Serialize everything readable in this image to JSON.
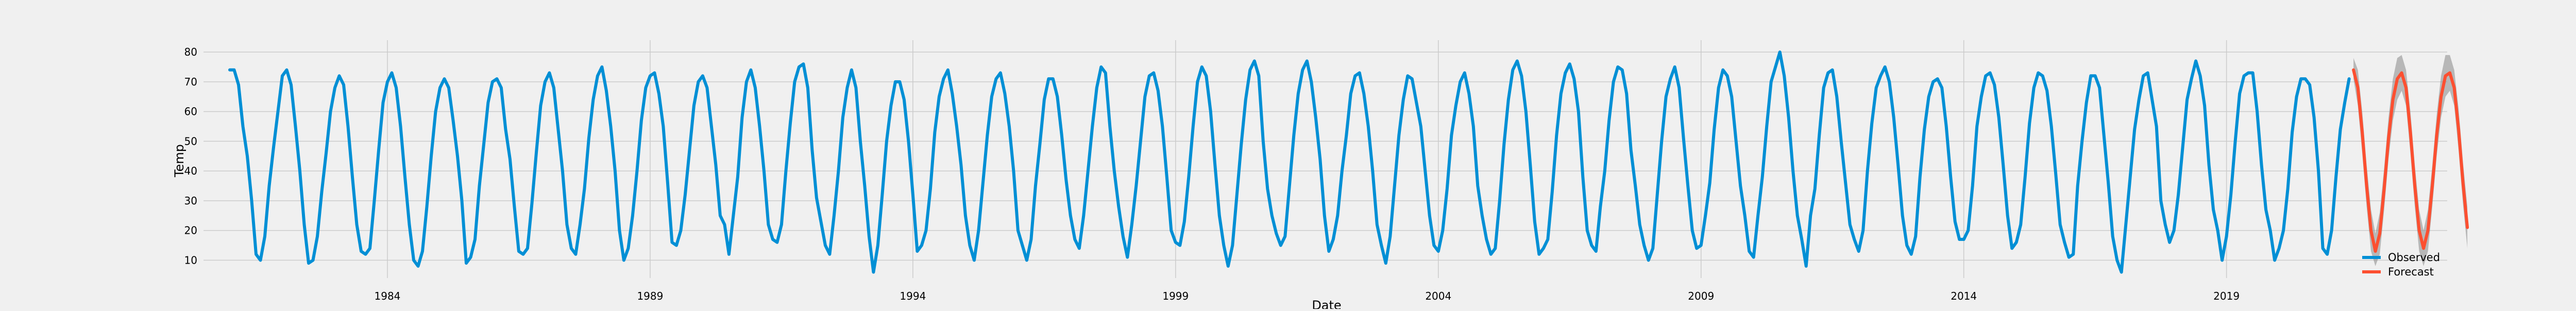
{
  "chart_data": {
    "type": "line",
    "title": "",
    "xlabel": "Date",
    "ylabel": "Temp",
    "xlim": [
      1980.5,
      2023.2
    ],
    "ylim": [
      4,
      84
    ],
    "yticks": [
      10,
      20,
      30,
      40,
      50,
      60,
      70,
      80
    ],
    "xticks": [
      "1984",
      "1989",
      "1994",
      "1999",
      "2004",
      "2009",
      "2014",
      "2019"
    ],
    "grid": true,
    "legend_position": "bottom-right",
    "colors": {
      "observed": "#008fd5",
      "forecast": "#fc4f30",
      "band": "#888888"
    },
    "series": [
      {
        "name": "Observed",
        "sampling": "monthly",
        "start_year": 1981,
        "start_month": 1,
        "y": [
          74,
          74,
          69,
          55,
          45,
          30,
          12,
          10,
          18,
          35,
          48,
          60,
          72,
          74,
          69,
          55,
          40,
          22,
          9,
          10,
          18,
          33,
          46,
          60,
          68,
          72,
          69,
          55,
          38,
          22,
          13,
          12,
          14,
          30,
          47,
          63,
          70,
          73,
          68,
          55,
          38,
          22,
          10,
          8,
          13,
          28,
          45,
          60,
          68,
          71,
          68,
          57,
          45,
          30,
          9,
          11,
          17,
          35,
          49,
          63,
          70,
          71,
          68,
          54,
          44,
          28,
          13,
          12,
          14,
          29,
          46,
          62,
          70,
          73,
          68,
          54,
          40,
          22,
          14,
          12,
          22,
          34,
          51,
          64,
          72,
          75,
          67,
          55,
          40,
          20,
          10,
          14,
          25,
          40,
          57,
          68,
          72,
          73,
          66,
          55,
          36,
          16,
          15,
          20,
          32,
          47,
          62,
          70,
          72,
          68,
          55,
          42,
          25,
          22,
          12,
          25,
          38,
          58,
          70,
          74,
          68,
          55,
          40,
          22,
          17,
          16,
          22,
          40,
          56,
          70,
          75,
          76,
          68,
          47,
          31,
          23,
          15,
          12,
          25,
          40,
          58,
          68,
          74,
          68,
          50,
          35,
          18,
          6,
          15,
          32,
          50,
          62,
          70,
          70,
          64,
          50,
          32,
          13,
          15,
          20,
          34,
          53,
          65,
          71,
          74,
          66,
          55,
          42,
          25,
          15,
          10,
          20,
          36,
          52,
          65,
          71,
          73,
          66,
          55,
          40,
          20,
          15,
          10,
          17,
          35,
          49,
          64,
          71,
          71,
          65,
          52,
          37,
          25,
          17,
          14,
          25,
          40,
          55,
          68,
          75,
          73,
          55,
          40,
          28,
          18,
          11,
          22,
          35,
          50,
          65,
          72,
          73,
          67,
          55,
          38,
          20,
          16,
          15,
          23,
          38,
          55,
          70,
          75,
          72,
          60,
          42,
          25,
          15,
          8,
          15,
          32,
          49,
          64,
          74,
          77,
          72,
          50,
          34,
          25,
          19,
          15,
          18,
          35,
          52,
          66,
          74,
          77,
          70,
          58,
          44,
          25,
          13,
          17,
          25,
          40,
          52,
          66,
          72,
          73,
          66,
          55,
          40,
          22,
          15,
          9,
          18,
          35,
          52,
          64,
          72,
          71,
          63,
          55,
          40,
          25,
          15,
          13,
          20,
          34,
          52,
          62,
          70,
          73,
          66,
          55,
          35,
          25,
          17,
          12,
          14,
          30,
          49,
          64,
          74,
          77,
          72,
          60,
          42,
          23,
          12,
          14,
          17,
          33,
          52,
          66,
          73,
          76,
          71,
          60,
          38,
          20,
          15,
          13,
          28,
          40,
          57,
          70,
          75,
          74,
          66,
          47,
          35,
          22,
          15,
          10,
          14,
          32,
          50,
          65,
          71,
          75,
          68,
          51,
          35,
          20,
          14,
          15,
          25,
          36,
          54,
          68,
          74,
          72,
          65,
          50,
          35,
          25,
          13,
          11,
          25,
          38,
          55,
          70,
          75,
          80,
          72,
          58,
          40,
          25,
          17,
          8,
          25,
          34,
          52,
          68,
          73,
          74,
          65,
          50,
          36,
          22,
          17,
          13,
          20,
          40,
          56,
          68,
          72,
          75,
          70,
          58,
          42,
          25,
          15,
          12,
          18,
          38,
          54,
          65,
          70,
          71,
          68,
          55,
          38,
          23,
          17,
          17,
          20,
          35,
          55,
          65,
          72,
          73,
          69,
          58,
          42,
          25,
          14,
          16,
          22,
          38,
          56,
          68,
          73,
          72,
          67,
          55,
          39,
          22,
          16,
          11,
          12,
          35,
          50,
          63,
          72,
          72,
          68,
          52,
          36,
          18,
          10,
          6,
          22,
          38,
          54,
          64,
          72,
          73,
          64,
          55,
          30,
          22,
          16,
          20,
          32,
          48,
          64,
          71,
          77,
          72,
          62,
          42,
          27,
          20,
          10,
          18,
          32,
          50,
          66,
          72,
          73,
          73,
          60,
          42,
          27,
          20,
          10,
          14,
          20,
          34,
          53,
          65,
          71,
          71,
          69,
          58,
          40,
          14,
          12,
          20,
          38,
          54,
          63,
          71
        ]
      },
      {
        "name": "Forecast",
        "sampling": "monthly",
        "start_year": 2021,
        "start_month": 6,
        "y": [
          74,
          68,
          53,
          35,
          20,
          13,
          19,
          34,
          51,
          64,
          71,
          73,
          68,
          53,
          35,
          20,
          14,
          20,
          35,
          52,
          65,
          72,
          73,
          68,
          54,
          36,
          21
        ],
        "lower": [
          71,
          62,
          46,
          28,
          13,
          8,
          12,
          27,
          44,
          57,
          64,
          67,
          62,
          46,
          28,
          13,
          8,
          13,
          28,
          45,
          58,
          65,
          67,
          62,
          47,
          29,
          14
        ],
        "upper": [
          78,
          74,
          60,
          42,
          27,
          19,
          26,
          41,
          58,
          71,
          78,
          79,
          74,
          60,
          42,
          27,
          20,
          27,
          42,
          59,
          72,
          79,
          79,
          74,
          61,
          43,
          28
        ]
      }
    ]
  }
}
